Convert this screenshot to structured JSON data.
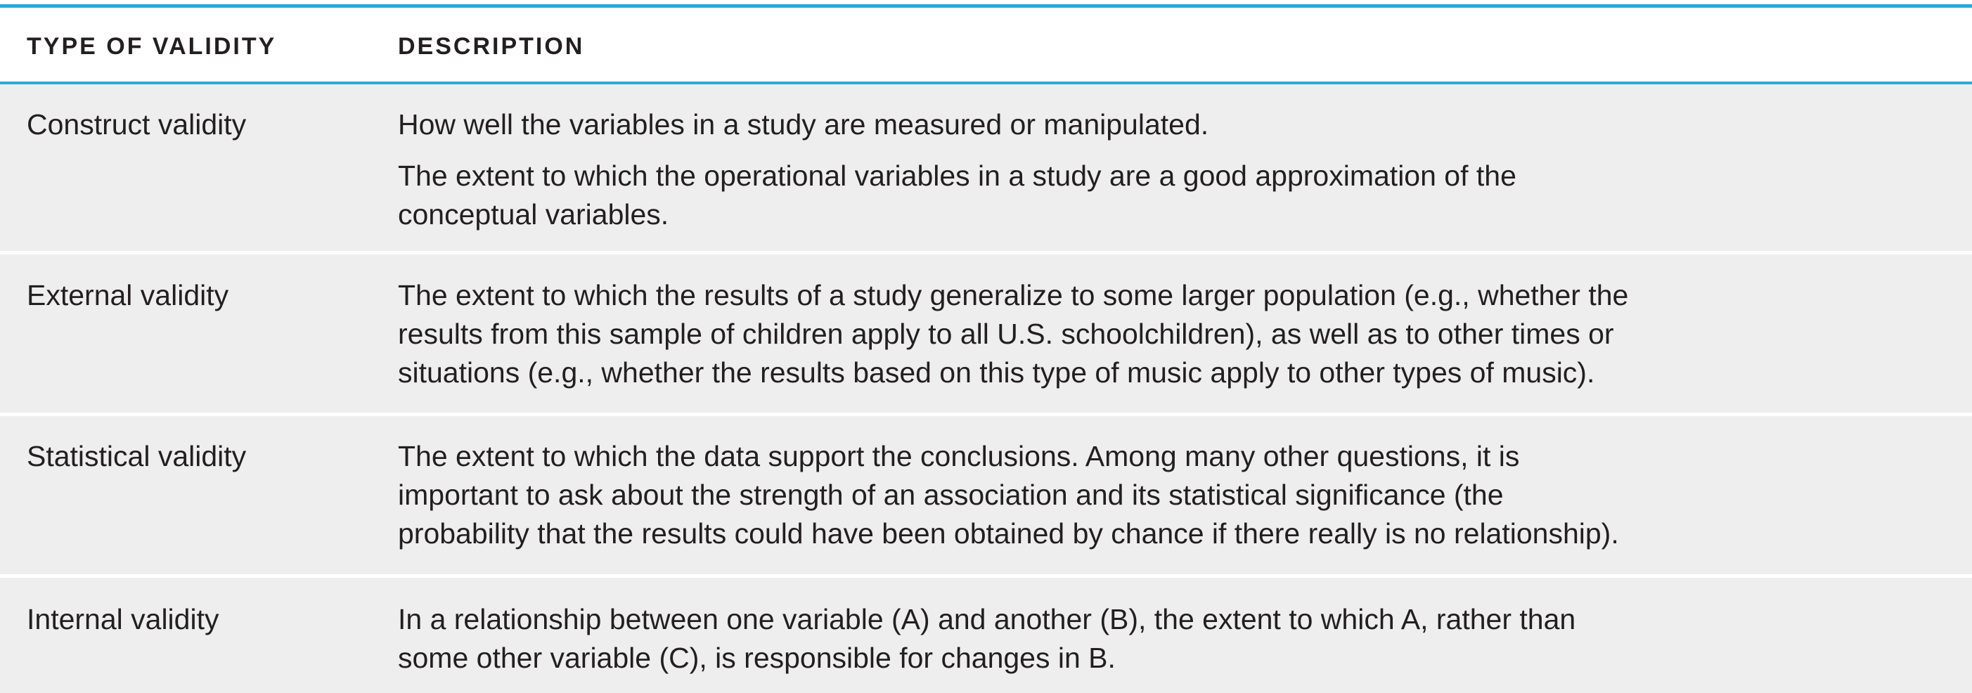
{
  "headers": {
    "type": "TYPE OF VALIDITY",
    "description": "DESCRIPTION"
  },
  "rows": [
    {
      "type": "Construct validity",
      "description": [
        [
          "How well the variables in a study are measured or manipulated."
        ],
        [
          "The extent to which the operational variables in a study are a good approximation of the",
          "conceptual variables."
        ]
      ]
    },
    {
      "type": "External validity",
      "description": [
        [
          "The extent to which the results of a study generalize to some larger population (e.g., whether the",
          "results from this sample of children apply to all U.S. schoolchildren), as well as to other times or",
          "situations (e.g., whether the results based on this type of music apply to other types of music)."
        ]
      ]
    },
    {
      "type": "Statistical validity",
      "description": [
        [
          "The extent to which the data support the conclusions. Among many other questions, it is",
          "important to ask about the strength of an association and its statistical significance (the",
          "probability that the results could have been obtained by chance if there really is no relationship)."
        ]
      ]
    },
    {
      "type": "Internal validity",
      "description": [
        [
          "In a relationship between one variable (A) and another (B), the extent to which A, rather than",
          "some other variable (C), is responsible for changes in B."
        ]
      ]
    }
  ]
}
